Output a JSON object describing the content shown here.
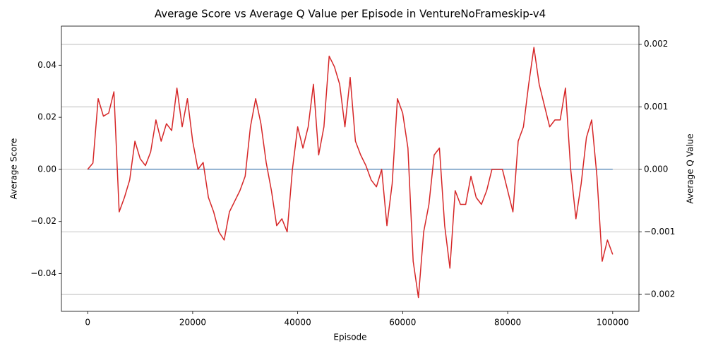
{
  "chart_data": {
    "type": "line",
    "title": "Average Score vs Average Q Value per Episode in VentureNoFrameskip-v4",
    "x_label": "Episode",
    "y_label": "Average Score",
    "y2_label": "Average Q Value",
    "xlim": [
      -5000,
      105000
    ],
    "xticks": [
      0,
      20000,
      40000,
      60000,
      80000,
      100000
    ],
    "ylim": [
      -0.0545,
      0.055
    ],
    "yticks": [
      {
        "value": -0.04,
        "label": "−0.04"
      },
      {
        "value": -0.02,
        "label": "−0.02"
      },
      {
        "value": 0,
        "label": "0.00"
      },
      {
        "value": 0.02,
        "label": "0.02"
      },
      {
        "value": 0.04,
        "label": "0.04"
      }
    ],
    "y2lim": [
      -0.00227,
      0.00229
    ],
    "y2ticks": [
      {
        "value": -0.002,
        "label": "−0.002"
      },
      {
        "value": -0.001,
        "label": "−0.001"
      },
      {
        "value": 0,
        "label": "0.000"
      },
      {
        "value": 0.001,
        "label": "0.001"
      },
      {
        "value": 0.002,
        "label": "0.002"
      }
    ],
    "y_color": "#1f77b4",
    "y2_color": "#d62728",
    "grid": "y2",
    "series": [
      {
        "name": "Average Score",
        "color": "#8fb0cf",
        "axis": "y",
        "x": [
          0,
          100000
        ],
        "values": [
          0,
          0
        ]
      },
      {
        "name": "Average Q Value",
        "color": "#d62728",
        "axis": "y2",
        "x": [
          0,
          1000,
          2000,
          3000,
          4000,
          5000,
          6000,
          7000,
          8000,
          9000,
          10000,
          11000,
          12000,
          13000,
          14000,
          15000,
          16000,
          17000,
          18000,
          19000,
          20000,
          21000,
          22000,
          23000,
          24000,
          25000,
          26000,
          27000,
          28000,
          29000,
          30000,
          31000,
          32000,
          33000,
          34000,
          35000,
          36000,
          37000,
          38000,
          39000,
          40000,
          41000,
          42000,
          43000,
          44000,
          45000,
          46000,
          47000,
          48000,
          49000,
          50000,
          51000,
          52000,
          53000,
          54000,
          55000,
          56000,
          57000,
          58000,
          59000,
          60000,
          61000,
          62000,
          63000,
          64000,
          65000,
          66000,
          67000,
          68000,
          69000,
          70000,
          71000,
          72000,
          73000,
          74000,
          75000,
          76000,
          77000,
          78000,
          79000,
          80000,
          81000,
          82000,
          83000,
          84000,
          85000,
          86000,
          87000,
          88000,
          89000,
          90000,
          91000,
          92000,
          93000,
          94000,
          95000,
          96000,
          97000,
          98000,
          99000,
          100000
        ],
        "values": [
          0,
          0.0001,
          0.00113,
          0.00085,
          0.0009,
          0.00124,
          -0.00068,
          -0.00045,
          -0.00017,
          0.00045,
          0.00017,
          6e-05,
          0.00028,
          0.00079,
          0.00045,
          0.00073,
          0.00062,
          0.0013,
          0.00068,
          0.00113,
          0.00045,
          0,
          0.00011,
          -0.00045,
          -0.00068,
          -0.001,
          -0.00113,
          -0.00068,
          -0.00051,
          -0.00034,
          -0.00011,
          0.00068,
          0.00113,
          0.00073,
          0.00011,
          -0.00034,
          -0.0009,
          -0.00079,
          -0.001,
          0,
          0.00068,
          0.00034,
          0.00068,
          0.00136,
          0.00023,
          0.00068,
          0.00181,
          0.00164,
          0.00136,
          0.00068,
          0.00147,
          0.00045,
          0.00023,
          6e-05,
          -0.00017,
          -0.00028,
          0,
          -0.0009,
          -0.00023,
          0.00113,
          0.0009,
          0.00034,
          -0.00147,
          -0.00205,
          -0.001,
          -0.00056,
          0.00023,
          0.00034,
          -0.0009,
          -0.00158,
          -0.00034,
          -0.00056,
          -0.00056,
          -0.00011,
          -0.00045,
          -0.00056,
          -0.00034,
          0,
          0,
          0,
          -0.00034,
          -0.00068,
          0.00045,
          0.00068,
          0.00136,
          0.00195,
          0.00136,
          0.00102,
          0.00068,
          0.00079,
          0.00079,
          0.0013,
          0,
          -0.00079,
          -0.00023,
          0.00051,
          0.00079,
          -0.00011,
          -0.00147,
          -0.00113,
          -0.00136
        ]
      }
    ]
  }
}
